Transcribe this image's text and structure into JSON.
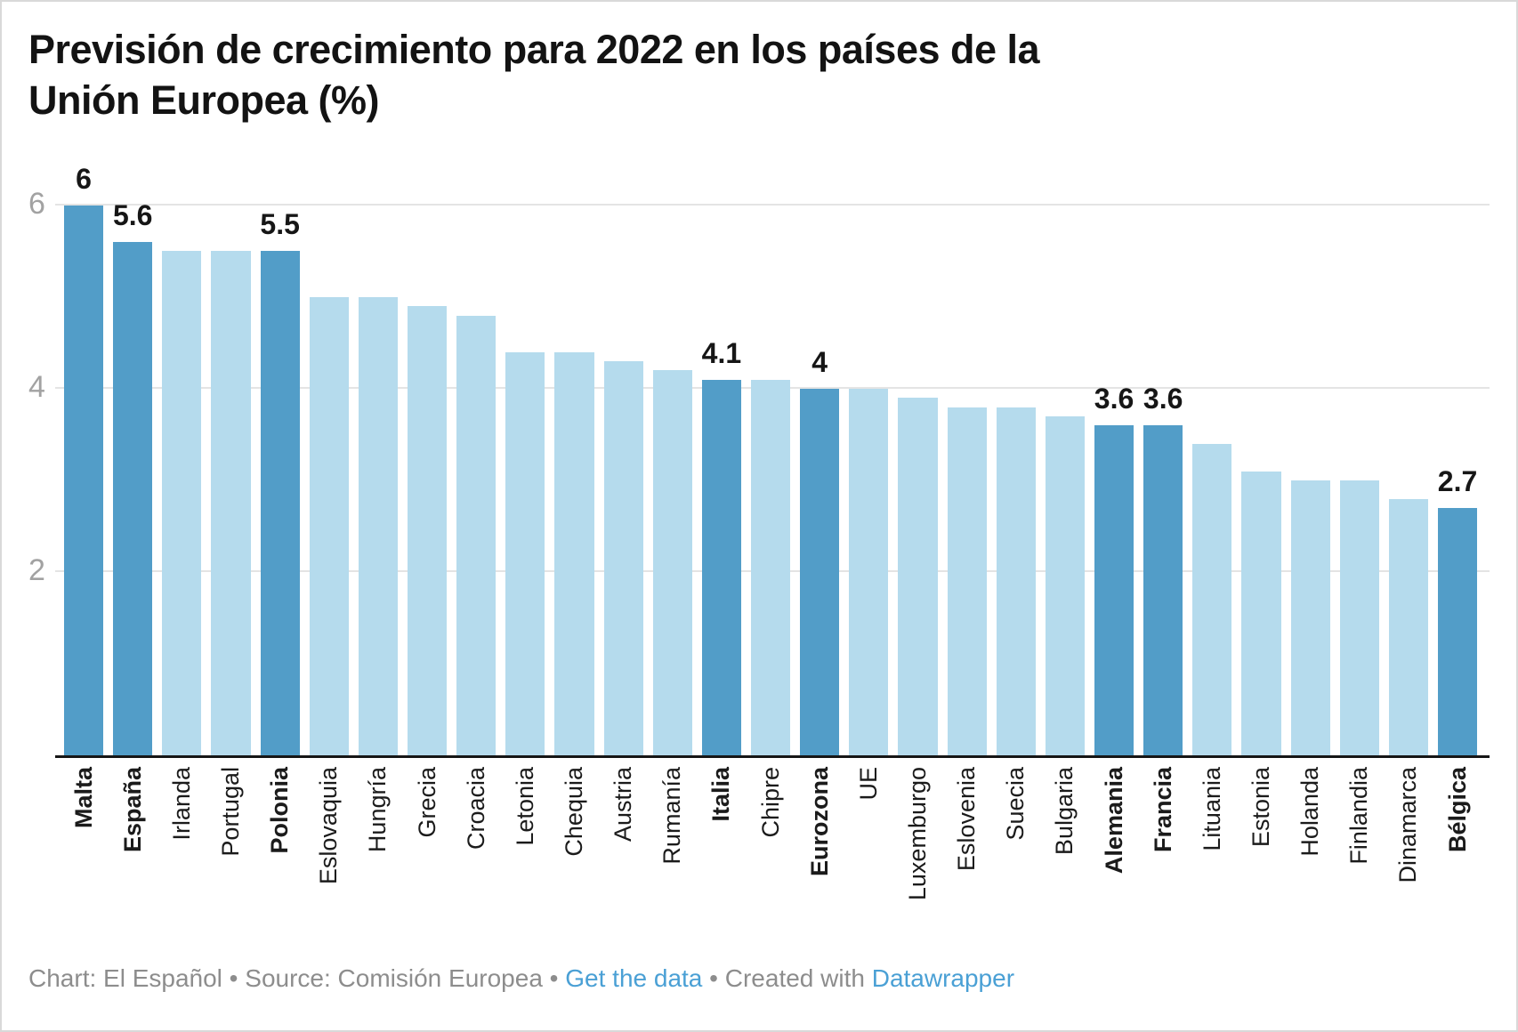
{
  "title_lines": {
    "line1": "Previsión de crecimiento para 2022 en los países de la",
    "line2": "Unión Europea (%)"
  },
  "colors": {
    "bar_highlight": "#529dc8",
    "bar_default": "#b5dbed",
    "grid": "#e4e4e4",
    "axis_line": "#161616",
    "tick_label": "#a2a2a2",
    "footer_text": "#8d8d8d",
    "footer_link": "#4aa0d5"
  },
  "y_axis": {
    "ticks": [
      {
        "value": 2,
        "label": "2"
      },
      {
        "value": 4,
        "label": "4"
      },
      {
        "value": 6,
        "label": "6"
      }
    ]
  },
  "chart_data": {
    "type": "bar",
    "title": "Previsión de crecimiento para 2022 en los países de la Unión Europea (%)",
    "xlabel": "",
    "ylabel": "",
    "ylim": [
      0,
      6.5
    ],
    "y_ticks": [
      2,
      4,
      6
    ],
    "grid": "horizontal",
    "legend": "none",
    "categories": [
      "Malta",
      "España",
      "Irlanda",
      "Portugal",
      "Polonia",
      "Eslovaquia",
      "Hungría",
      "Grecia",
      "Croacia",
      "Letonia",
      "Chequia",
      "Austria",
      "Rumanía",
      "Italia",
      "Chipre",
      "Eurozona",
      "UE",
      "Luxemburgo",
      "Eslovenia",
      "Suecia",
      "Bulgaria",
      "Alemania",
      "Francia",
      "Lituania",
      "Estonia",
      "Holanda",
      "Finlandia",
      "Dinamarca",
      "Bélgica"
    ],
    "values": [
      6,
      5.6,
      5.5,
      5.5,
      5.5,
      5,
      5,
      4.9,
      4.8,
      4.4,
      4.4,
      4.3,
      4.2,
      4.1,
      4.1,
      4,
      4,
      3.9,
      3.8,
      3.8,
      3.7,
      3.6,
      3.6,
      3.4,
      3.1,
      3,
      3,
      2.8,
      2.7
    ],
    "data_labels": [
      "6",
      "5.6",
      null,
      null,
      "5.5",
      null,
      null,
      null,
      null,
      null,
      null,
      null,
      null,
      "4.1",
      null,
      "4",
      null,
      null,
      null,
      null,
      null,
      "3.6",
      "3.6",
      null,
      null,
      null,
      null,
      null,
      "2.7"
    ],
    "highlighted": [
      true,
      true,
      false,
      false,
      true,
      false,
      false,
      false,
      false,
      false,
      false,
      false,
      false,
      true,
      false,
      true,
      false,
      false,
      false,
      false,
      false,
      true,
      true,
      false,
      false,
      false,
      false,
      false,
      true
    ]
  },
  "footer": {
    "chart_credit": "Chart: El Español",
    "separator": "•",
    "source_credit": "Source: Comisión Europea",
    "get_data_label": "Get the data",
    "created_with": "Created with",
    "tool_name": "Datawrapper"
  }
}
